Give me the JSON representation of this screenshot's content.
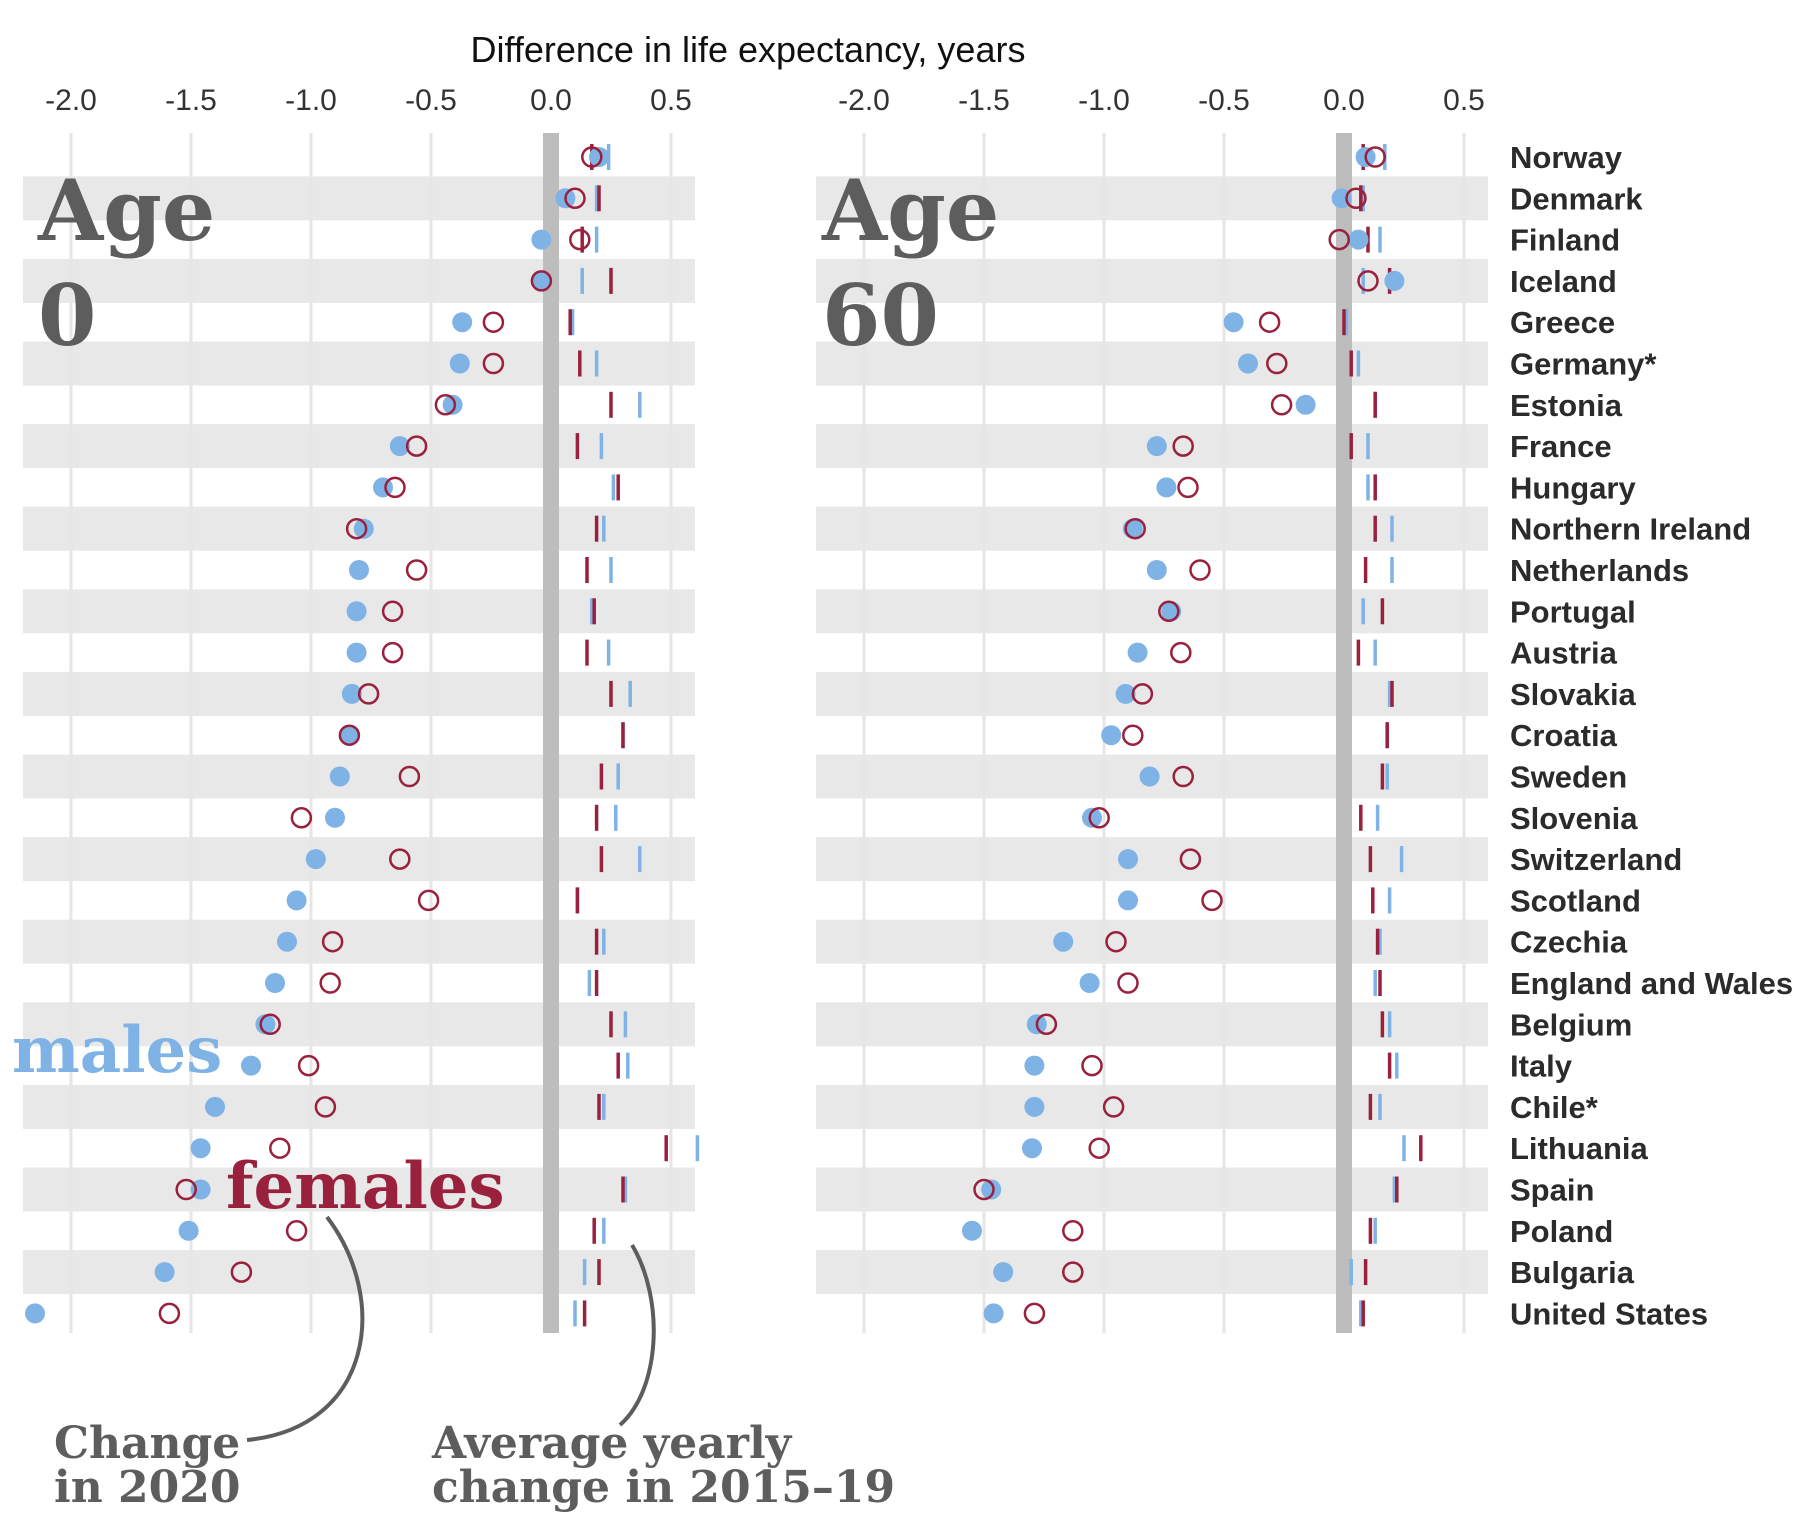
{
  "chart_data": {
    "type": "scatter",
    "title": "Difference in life expectancy, years",
    "countries": [
      "Norway",
      "Denmark",
      "Finland",
      "Iceland",
      "Greece",
      "Germany*",
      "Estonia",
      "France",
      "Hungary",
      "Northern Ireland",
      "Netherlands",
      "Portugal",
      "Austria",
      "Slovakia",
      "Croatia",
      "Sweden",
      "Slovenia",
      "Switzerland",
      "Scotland",
      "Czechia",
      "England and Wales",
      "Belgium",
      "Italy",
      "Chile*",
      "Lithuania",
      "Spain",
      "Poland",
      "Bulgaria",
      "United States"
    ],
    "xlim": [
      -2.2,
      0.6
    ],
    "xticks": [
      -2.0,
      -1.5,
      -1.0,
      -0.5,
      0.0,
      0.5
    ],
    "xtick_labels": [
      "-2.0",
      "-1.5",
      "-1.0",
      "-0.5",
      "0.0",
      "0.5"
    ],
    "colors": {
      "males": "#7fb2e5",
      "females": "#99213e",
      "zero_line": "#bdbdbd",
      "band": "#e8e8e8",
      "grid": "#e6e6e6",
      "panel_title": "#5d5d5d",
      "annotation": "#5d5d5d",
      "text": "#2b2b2b"
    },
    "legend": {
      "males": "males",
      "females": "females"
    },
    "annotations": {
      "change": [
        "Change",
        "in 2020"
      ],
      "average": [
        "Average yearly",
        "change in 2015–19"
      ]
    },
    "panels": [
      {
        "title_line1": "Age",
        "title_line2": "0",
        "change_2020": {
          "males": [
            0.2,
            0.06,
            -0.04,
            -0.04,
            -0.37,
            -0.38,
            -0.41,
            -0.63,
            -0.7,
            -0.78,
            -0.8,
            -0.81,
            -0.81,
            -0.83,
            -0.84,
            -0.88,
            -0.9,
            -0.98,
            -1.06,
            -1.1,
            -1.15,
            -1.19,
            -1.25,
            -1.4,
            -1.46,
            -1.46,
            -1.51,
            -1.61,
            -2.15
          ],
          "females": [
            0.17,
            0.1,
            0.12,
            -0.04,
            -0.24,
            -0.24,
            -0.44,
            -0.56,
            -0.65,
            -0.81,
            -0.56,
            -0.66,
            -0.66,
            -0.76,
            -0.84,
            -0.59,
            -1.04,
            -0.63,
            -0.51,
            -0.91,
            -0.92,
            -1.17,
            -1.01,
            -0.94,
            -1.13,
            -1.52,
            -1.06,
            -1.29,
            -1.59
          ]
        },
        "avg_2015_19": {
          "males": [
            0.24,
            0.19,
            0.19,
            0.13,
            0.09,
            0.19,
            0.37,
            0.21,
            0.26,
            0.22,
            0.25,
            0.17,
            0.24,
            0.33,
            0.3,
            0.28,
            0.27,
            0.37,
            0.11,
            0.22,
            0.16,
            0.31,
            0.32,
            0.22,
            0.61,
            0.31,
            0.22,
            0.14,
            0.1
          ],
          "females": [
            0.17,
            0.2,
            0.13,
            0.25,
            0.08,
            0.12,
            0.25,
            0.11,
            0.28,
            0.19,
            0.15,
            0.18,
            0.15,
            0.25,
            0.3,
            0.21,
            0.19,
            0.21,
            0.11,
            0.19,
            0.19,
            0.25,
            0.28,
            0.2,
            0.48,
            0.3,
            0.18,
            0.2,
            0.14
          ]
        }
      },
      {
        "title_line1": "Age",
        "title_line2": "60",
        "change_2020": {
          "males": [
            0.09,
            -0.01,
            0.06,
            0.21,
            -0.46,
            -0.4,
            -0.16,
            -0.78,
            -0.74,
            -0.88,
            -0.78,
            -0.72,
            -0.86,
            -0.91,
            -0.97,
            -0.81,
            -1.05,
            -0.9,
            -0.9,
            -1.17,
            -1.06,
            -1.28,
            -1.29,
            -1.29,
            -1.3,
            -1.47,
            -1.55,
            -1.42,
            -1.46
          ],
          "females": [
            0.13,
            0.05,
            -0.02,
            0.1,
            -0.31,
            -0.28,
            -0.26,
            -0.67,
            -0.65,
            -0.87,
            -0.6,
            -0.73,
            -0.68,
            -0.84,
            -0.88,
            -0.67,
            -1.02,
            -0.64,
            -0.55,
            -0.95,
            -0.9,
            -1.24,
            -1.05,
            -0.96,
            -1.02,
            -1.5,
            -1.13,
            -1.13,
            -1.29
          ]
        },
        "avg_2015_19": {
          "males": [
            0.17,
            0.08,
            0.15,
            0.08,
            0.01,
            0.06,
            0.13,
            0.1,
            0.1,
            0.2,
            0.2,
            0.08,
            0.13,
            0.19,
            0.18,
            0.18,
            0.14,
            0.24,
            0.19,
            0.15,
            0.13,
            0.19,
            0.22,
            0.15,
            0.25,
            0.21,
            0.13,
            0.03,
            0.07
          ],
          "females": [
            0.08,
            0.07,
            0.1,
            0.19,
            0.0,
            0.03,
            0.13,
            0.03,
            0.13,
            0.13,
            0.09,
            0.16,
            0.06,
            0.2,
            0.18,
            0.16,
            0.07,
            0.11,
            0.12,
            0.14,
            0.15,
            0.16,
            0.19,
            0.11,
            0.32,
            0.22,
            0.11,
            0.09,
            0.08
          ]
        }
      }
    ]
  }
}
